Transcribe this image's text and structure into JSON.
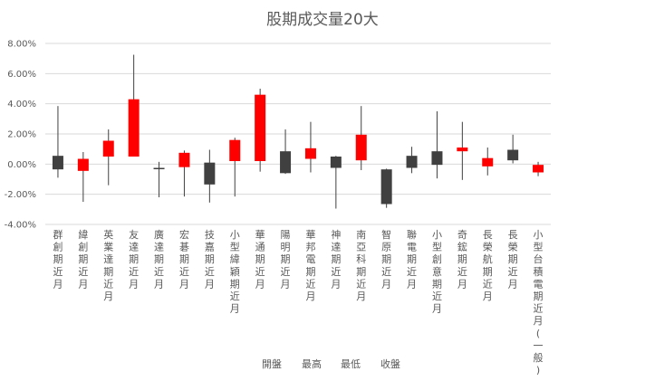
{
  "chart_data": {
    "type": "candlestick",
    "title": "股期成交量20大",
    "ylim": [
      -0.04,
      0.08
    ],
    "yticks": [
      {
        "value": 0.08,
        "label": "8.00%"
      },
      {
        "value": 0.06,
        "label": "6.00%"
      },
      {
        "value": 0.04,
        "label": "4.00%"
      },
      {
        "value": 0.02,
        "label": "2.00%"
      },
      {
        "value": 0.0,
        "label": "0.00%"
      },
      {
        "value": -0.02,
        "label": "-2.00%"
      },
      {
        "value": -0.04,
        "label": "-4.00%"
      }
    ],
    "legend": [
      "開盤",
      "最高",
      "最低",
      "收盤"
    ],
    "up_color": "#ff0000",
    "down_color": "#404040",
    "categories": [
      {
        "label": "群創期近月",
        "open": 0.0055,
        "high": 0.0385,
        "low": -0.009,
        "close": -0.0035
      },
      {
        "label": "緯創期近月",
        "open": -0.0045,
        "high": 0.008,
        "low": -0.025,
        "close": 0.0035
      },
      {
        "label": "英業達期近月",
        "open": 0.005,
        "high": 0.023,
        "low": -0.014,
        "close": 0.0155
      },
      {
        "label": "友達期近月",
        "open": 0.005,
        "high": 0.0725,
        "low": 0.005,
        "close": 0.043
      },
      {
        "label": "廣達期近月",
        "open": -0.0025,
        "high": 0.0015,
        "low": -0.022,
        "close": -0.003
      },
      {
        "label": "宏碁期近月",
        "open": -0.002,
        "high": 0.009,
        "low": -0.0215,
        "close": 0.0075
      },
      {
        "label": "技嘉期近月",
        "open": 0.001,
        "high": 0.0095,
        "low": -0.0255,
        "close": -0.0135
      },
      {
        "label": "小型緯穎期近月",
        "open": 0.002,
        "high": 0.0175,
        "low": -0.0215,
        "close": 0.016
      },
      {
        "label": "華通期近月",
        "open": 0.002,
        "high": 0.05,
        "low": -0.005,
        "close": 0.046
      },
      {
        "label": "陽明期近月",
        "open": 0.0085,
        "high": 0.023,
        "low": -0.0065,
        "close": -0.006
      },
      {
        "label": "華邦電期近月",
        "open": 0.0035,
        "high": 0.028,
        "low": -0.0055,
        "close": 0.0105
      },
      {
        "label": "神達期近月",
        "open": 0.005,
        "high": 0.0055,
        "low": -0.0295,
        "close": -0.0025
      },
      {
        "label": "南亞科期近月",
        "open": 0.0025,
        "high": 0.0385,
        "low": -0.004,
        "close": 0.0195
      },
      {
        "label": "智原期近月",
        "open": -0.0035,
        "high": -0.003,
        "low": -0.029,
        "close": -0.0265
      },
      {
        "label": "聯電期近月",
        "open": 0.0055,
        "high": 0.0115,
        "low": -0.006,
        "close": -0.0025
      },
      {
        "label": "小型創意期近月",
        "open": 0.0085,
        "high": 0.035,
        "low": -0.0095,
        "close": -0.0005
      },
      {
        "label": "奇鋐期近月",
        "open": 0.0085,
        "high": 0.028,
        "low": -0.0105,
        "close": 0.011
      },
      {
        "label": "長榮航期近月",
        "open": -0.0015,
        "high": 0.011,
        "low": -0.0075,
        "close": 0.004
      },
      {
        "label": "長榮期近月",
        "open": 0.0095,
        "high": 0.0195,
        "low": 0.0005,
        "close": 0.0025
      },
      {
        "label": "小型台積電期近月(一般)",
        "open": -0.0055,
        "high": 0.0015,
        "low": -0.008,
        "close": -0.0005
      }
    ]
  }
}
